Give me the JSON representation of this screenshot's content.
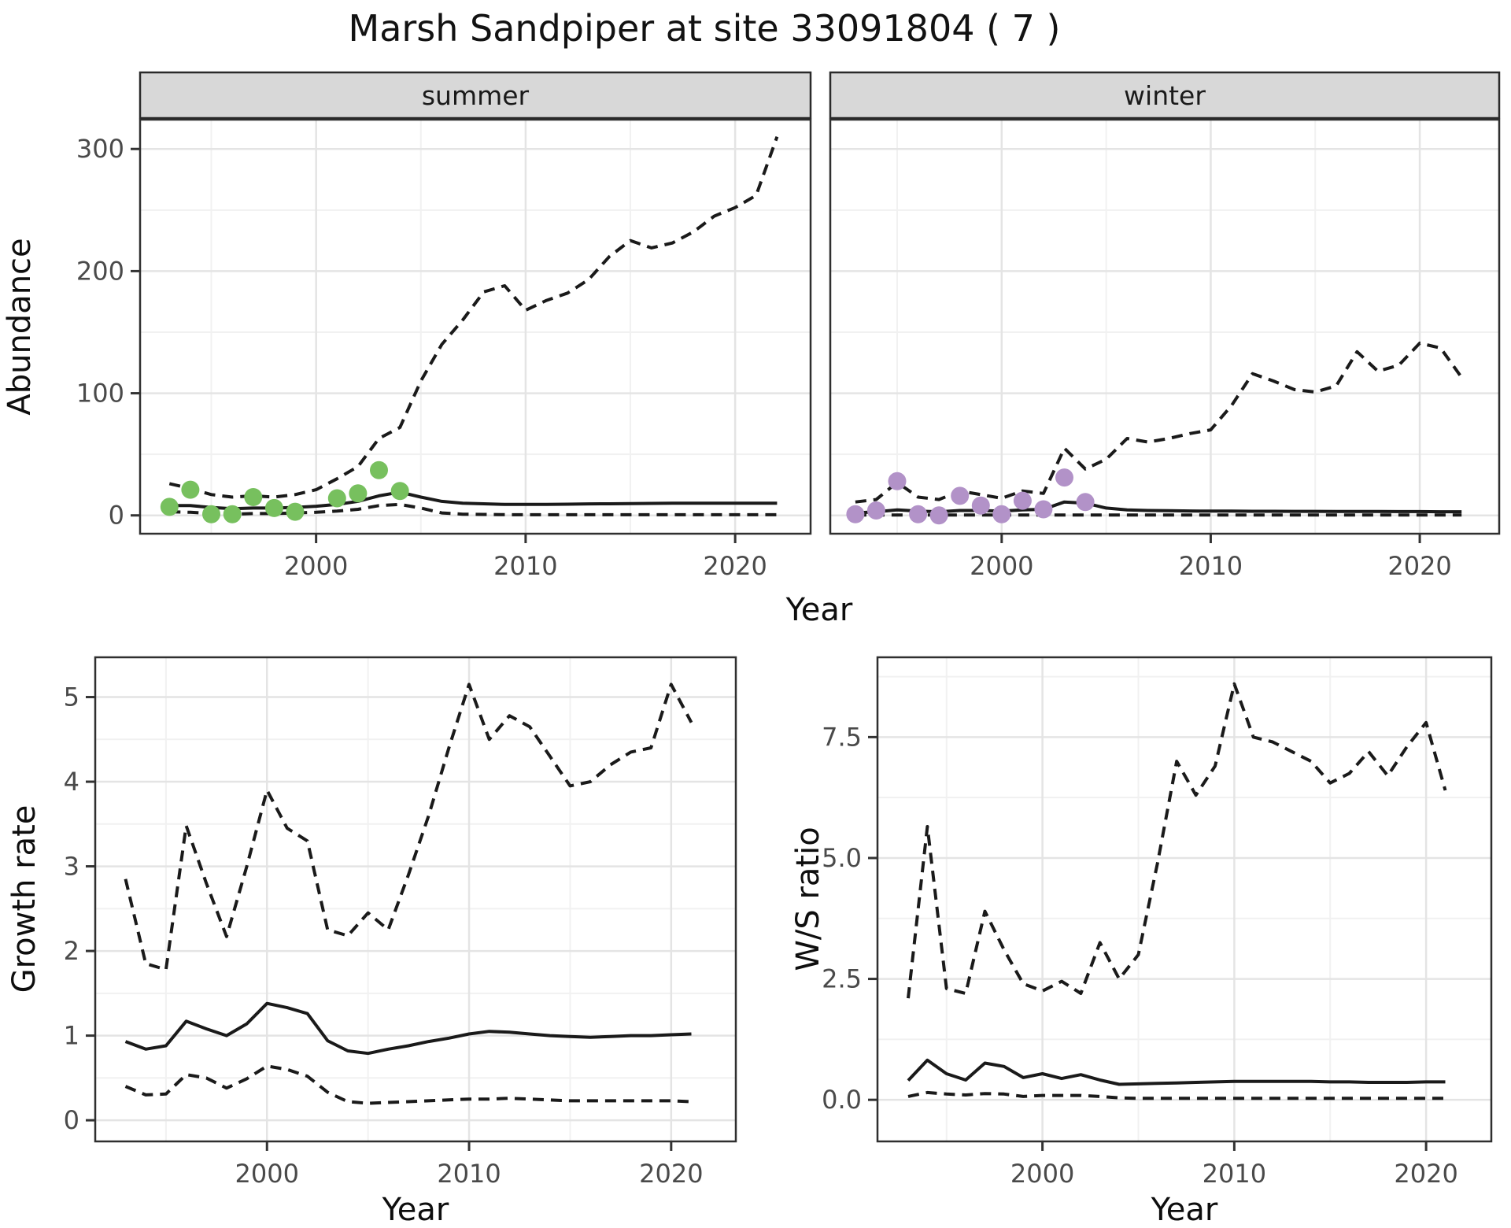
{
  "title": "Marsh Sandpiper at site 33091804 ( 7 )",
  "labels": {
    "title": "Marsh Sandpiper at site 33091804 ( 7 )",
    "facet_summer": "summer",
    "facet_winter": "winter",
    "y_abundance": "Abundance",
    "y_growth": "Growth rate",
    "y_ws": "W/S ratio",
    "x_year": "Year"
  },
  "colors": {
    "line": "#1a1a1a",
    "summer_point": "#77c05e",
    "winter_point": "#b292c8",
    "strip_bg": "#d8d8d8",
    "strip_border": "#2a2a2a",
    "panel_border": "#2f2f2f",
    "panel_bg": "#ffffff",
    "grid_major": "#e4e4e4",
    "grid_minor": "#f1f1f1",
    "tick_mark": "#333333",
    "tick_text": "#4a4a4a"
  },
  "chart_data": [
    {
      "id": "abundance-summer",
      "type": "line",
      "facet_label": "summer",
      "xlabel": "Year",
      "ylabel": "Abundance",
      "legend": "none",
      "grid": "on",
      "x": [
        1993,
        1994,
        1995,
        1996,
        1997,
        1998,
        1999,
        2000,
        2001,
        2002,
        2003,
        2004,
        2005,
        2006,
        2007,
        2008,
        2009,
        2010,
        2011,
        2012,
        2013,
        2014,
        2015,
        2016,
        2017,
        2018,
        2019,
        2020,
        2021,
        2022
      ],
      "series": [
        {
          "name": "estimate",
          "style": "solid",
          "values": [
            8,
            8,
            6.5,
            5.5,
            6,
            6,
            6.5,
            7.5,
            9,
            11.5,
            16,
            19,
            15,
            11.5,
            10,
            9.5,
            9,
            9,
            9,
            9.2,
            9.4,
            9.5,
            9.7,
            9.8,
            10,
            10,
            10,
            10,
            10,
            10
          ]
        },
        {
          "name": "upper_ci",
          "style": "dashed",
          "values": [
            26,
            22,
            17,
            15,
            16,
            15,
            17,
            21,
            30,
            40,
            63,
            72,
            110,
            140,
            160,
            183,
            188,
            168,
            176,
            182,
            193,
            212,
            225,
            219,
            223,
            232,
            245,
            252,
            262,
            310
          ]
        },
        {
          "name": "lower_ci",
          "style": "dashed",
          "values": [
            3,
            2.5,
            1.5,
            1,
            1.5,
            1.5,
            2,
            2.5,
            3.5,
            5,
            8,
            9,
            6,
            2,
            1,
            0.8,
            0.6,
            0.5,
            0.5,
            0.5,
            0.5,
            0.5,
            0.5,
            0.5,
            0.5,
            0.5,
            0.5,
            0.5,
            0.5,
            0.5
          ]
        }
      ],
      "points": {
        "name": "observed_summer",
        "color_key": "summer_point",
        "x": [
          1993,
          1994,
          1995,
          1996,
          1997,
          1998,
          1999,
          2001,
          2002,
          2003,
          2004
        ],
        "y": [
          7,
          21,
          1,
          1,
          15,
          6,
          3,
          14,
          18,
          37,
          20
        ]
      },
      "xlim": [
        1991.6,
        2023.6
      ],
      "ylim": [
        -15,
        324
      ],
      "x_ticks": [
        2000,
        2010,
        2020
      ],
      "x_tick_labels": [
        "2000",
        "2010",
        "2020"
      ],
      "x_minor": [
        1995,
        2005,
        2015
      ],
      "y_ticks": [
        0,
        100,
        200,
        300
      ],
      "y_tick_labels": [
        "0",
        "100",
        "200",
        "300"
      ],
      "y_minor": [
        50,
        150,
        250
      ]
    },
    {
      "id": "abundance-winter",
      "type": "line",
      "facet_label": "winter",
      "xlabel": "Year",
      "ylabel": "Abundance",
      "legend": "none",
      "grid": "on",
      "x": [
        1993,
        1994,
        1995,
        1996,
        1997,
        1998,
        1999,
        2000,
        2001,
        2002,
        2003,
        2004,
        2005,
        2006,
        2007,
        2008,
        2009,
        2010,
        2011,
        2012,
        2013,
        2014,
        2015,
        2016,
        2017,
        2018,
        2019,
        2020,
        2021,
        2022
      ],
      "series": [
        {
          "name": "estimate",
          "style": "solid",
          "values": [
            2,
            3,
            4.5,
            3.5,
            3,
            4,
            4,
            3.5,
            4.5,
            5,
            11,
            10,
            6,
            4.5,
            4,
            3.8,
            3.6,
            3.5,
            3.5,
            3.4,
            3.4,
            3.3,
            3.3,
            3.2,
            3.2,
            3.2,
            3.1,
            3.1,
            3,
            3
          ]
        },
        {
          "name": "upper_ci",
          "style": "dashed",
          "values": [
            11,
            13,
            27,
            15,
            13,
            20,
            17,
            14,
            20,
            18,
            55,
            38,
            46,
            63,
            60,
            63,
            67,
            70,
            90,
            116,
            110,
            103,
            101,
            106,
            134,
            118,
            123,
            141,
            137,
            113
          ]
        },
        {
          "name": "lower_ci",
          "style": "dashed",
          "values": [
            0.3,
            0.3,
            0.3,
            0.3,
            0.3,
            0.3,
            0.3,
            0.3,
            0.3,
            0.3,
            0.3,
            0.3,
            0.3,
            0.3,
            0.3,
            0.3,
            0.3,
            0.3,
            0.3,
            0.3,
            0.3,
            0.3,
            0.3,
            0.3,
            0.3,
            0.3,
            0.3,
            0.3,
            0.3,
            0.3
          ]
        }
      ],
      "points": {
        "name": "observed_winter",
        "color_key": "winter_point",
        "x": [
          1993,
          1994,
          1995,
          1996,
          1997,
          1998,
          1999,
          2000,
          2001,
          2002,
          2003,
          2004
        ],
        "y": [
          1,
          4,
          28,
          1,
          0,
          16,
          8,
          1,
          12,
          5,
          31,
          11
        ]
      },
      "xlim": [
        1991.8,
        2023.8
      ],
      "ylim": [
        -15,
        324
      ],
      "x_ticks": [
        2000,
        2010,
        2020
      ],
      "x_tick_labels": [
        "2000",
        "2010",
        "2020"
      ],
      "x_minor": [
        1995,
        2005,
        2015
      ],
      "y_ticks": [
        0,
        100,
        200,
        300
      ],
      "y_tick_labels": [
        "",
        "",
        "",
        ""
      ],
      "y_minor": [
        50,
        150,
        250
      ]
    },
    {
      "id": "growth-rate",
      "type": "line",
      "xlabel": "Year",
      "ylabel": "Growth rate",
      "legend": "none",
      "grid": "on",
      "x": [
        1993,
        1994,
        1995,
        1996,
        1997,
        1998,
        1999,
        2000,
        2001,
        2002,
        2003,
        2004,
        2005,
        2006,
        2007,
        2008,
        2009,
        2010,
        2011,
        2012,
        2013,
        2014,
        2015,
        2016,
        2017,
        2018,
        2019,
        2020,
        2021
      ],
      "series": [
        {
          "name": "estimate",
          "style": "solid",
          "values": [
            0.93,
            0.84,
            0.88,
            1.17,
            1.08,
            1.0,
            1.14,
            1.38,
            1.33,
            1.26,
            0.94,
            0.82,
            0.79,
            0.84,
            0.88,
            0.93,
            0.97,
            1.02,
            1.05,
            1.04,
            1.02,
            1.0,
            0.99,
            0.98,
            0.99,
            1.0,
            1.0,
            1.01,
            1.02
          ]
        },
        {
          "name": "upper_ci",
          "style": "dashed",
          "values": [
            2.85,
            1.85,
            1.78,
            3.48,
            2.8,
            2.17,
            3.0,
            3.9,
            3.45,
            3.3,
            2.25,
            2.18,
            2.45,
            2.25,
            2.9,
            3.6,
            4.4,
            5.15,
            4.5,
            4.78,
            4.65,
            4.3,
            3.95,
            4.0,
            4.2,
            4.35,
            4.4,
            5.15,
            4.7
          ]
        },
        {
          "name": "lower_ci",
          "style": "dashed",
          "values": [
            0.4,
            0.3,
            0.31,
            0.54,
            0.5,
            0.38,
            0.49,
            0.64,
            0.6,
            0.52,
            0.33,
            0.22,
            0.2,
            0.21,
            0.22,
            0.23,
            0.24,
            0.25,
            0.25,
            0.26,
            0.25,
            0.24,
            0.23,
            0.23,
            0.23,
            0.23,
            0.23,
            0.23,
            0.22
          ]
        }
      ],
      "xlim": [
        1991.5,
        2023.2
      ],
      "ylim": [
        -0.25,
        5.47
      ],
      "x_ticks": [
        2000,
        2010,
        2020
      ],
      "x_tick_labels": [
        "2000",
        "2010",
        "2020"
      ],
      "x_minor": [
        1995,
        2005,
        2015
      ],
      "y_ticks": [
        0,
        1,
        2,
        3,
        4,
        5
      ],
      "y_tick_labels": [
        "0",
        "1",
        "2",
        "3",
        "4",
        "5"
      ],
      "y_minor": [
        0.5,
        1.5,
        2.5,
        3.5,
        4.5
      ]
    },
    {
      "id": "ws-ratio",
      "type": "line",
      "xlabel": "Year",
      "ylabel": "W/S ratio",
      "legend": "none",
      "grid": "on",
      "x": [
        1993,
        1994,
        1995,
        1996,
        1997,
        1998,
        1999,
        2000,
        2001,
        2002,
        2003,
        2004,
        2005,
        2006,
        2007,
        2008,
        2009,
        2010,
        2011,
        2012,
        2013,
        2014,
        2015,
        2016,
        2017,
        2018,
        2019,
        2020,
        2021
      ],
      "series": [
        {
          "name": "estimate",
          "style": "solid",
          "values": [
            0.4,
            0.82,
            0.54,
            0.41,
            0.76,
            0.69,
            0.46,
            0.54,
            0.44,
            0.52,
            0.41,
            0.32,
            0.33,
            0.34,
            0.35,
            0.36,
            0.37,
            0.38,
            0.38,
            0.38,
            0.38,
            0.38,
            0.37,
            0.37,
            0.36,
            0.36,
            0.36,
            0.37,
            0.37
          ]
        },
        {
          "name": "upper_ci",
          "style": "dashed",
          "values": [
            2.1,
            5.65,
            2.3,
            2.2,
            3.9,
            3.1,
            2.4,
            2.25,
            2.45,
            2.2,
            3.25,
            2.5,
            3.0,
            4.9,
            7.0,
            6.3,
            6.9,
            8.6,
            7.5,
            7.4,
            7.2,
            7.0,
            6.55,
            6.75,
            7.2,
            6.7,
            7.3,
            7.8,
            6.4
          ]
        },
        {
          "name": "lower_ci",
          "style": "dashed",
          "values": [
            0.07,
            0.15,
            0.12,
            0.1,
            0.13,
            0.12,
            0.07,
            0.09,
            0.09,
            0.09,
            0.07,
            0.04,
            0.03,
            0.03,
            0.03,
            0.03,
            0.03,
            0.03,
            0.03,
            0.03,
            0.03,
            0.03,
            0.03,
            0.03,
            0.03,
            0.03,
            0.03,
            0.03,
            0.03
          ]
        }
      ],
      "xlim": [
        1991.4,
        2023.4
      ],
      "ylim": [
        -0.86,
        9.15
      ],
      "x_ticks": [
        2000,
        2010,
        2020
      ],
      "x_tick_labels": [
        "2000",
        "2010",
        "2020"
      ],
      "x_minor": [
        1995,
        2005,
        2015
      ],
      "y_ticks": [
        0,
        2.5,
        5,
        7.5
      ],
      "y_tick_labels": [
        "0.0",
        "2.5",
        "5.0",
        "7.5"
      ],
      "y_minor": [
        1.25,
        3.75,
        6.25,
        8.75
      ]
    }
  ]
}
